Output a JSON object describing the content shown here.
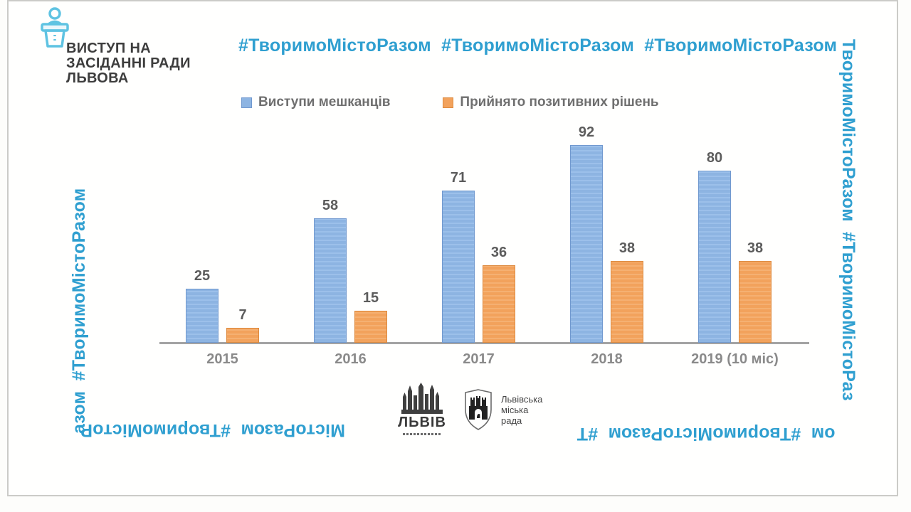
{
  "header": {
    "title": "ВИСТУП НА\nЗАСІДАННІ РАДИ\nЛЬВОВА"
  },
  "hashtags": {
    "color": "#2f9fd0",
    "top": "#ТворимоМістоРазом  #ТворимоМістоРазом  #ТворимоМістоРазом  #",
    "right_column": "ТворимоМістоРазом  #ТворимоМістоРаз",
    "bottom_right": "ом  #ТворимоМістоРазом  #Т",
    "bottom_left": "МістоРазом  #ТворимоМістоР",
    "left_column": "азом  #ТворимоМістоРазом"
  },
  "legend": {
    "items": [
      {
        "label": "Виступи мешканців"
      },
      {
        "label": "Прийнято позитивних рішень"
      }
    ]
  },
  "chart_data": {
    "type": "bar",
    "categories": [
      "2015",
      "2016",
      "2017",
      "2018",
      "2019 (10 міс)"
    ],
    "series": [
      {
        "name": "Виступи мешканців",
        "values": [
          25,
          58,
          71,
          92,
          80
        ],
        "fill": "#8db4e2",
        "stripe": "#9cc0ea",
        "border": "#7199cf"
      },
      {
        "name": "Прийнято позитивних рішень",
        "values": [
          7,
          15,
          36,
          38,
          38
        ],
        "fill": "#f2a25c",
        "stripe": "#f5b072",
        "border": "#dd8a3e"
      }
    ],
    "title": "",
    "xlabel": "",
    "ylabel": "",
    "ylim": [
      0,
      100
    ],
    "grid": false,
    "legend_position": "top",
    "axis_color": "#a3a3a3"
  },
  "footer": {
    "lviv_logo_word": "ЛЬВІВ",
    "council_logo_text": "Львівська\nміська\nрада"
  }
}
